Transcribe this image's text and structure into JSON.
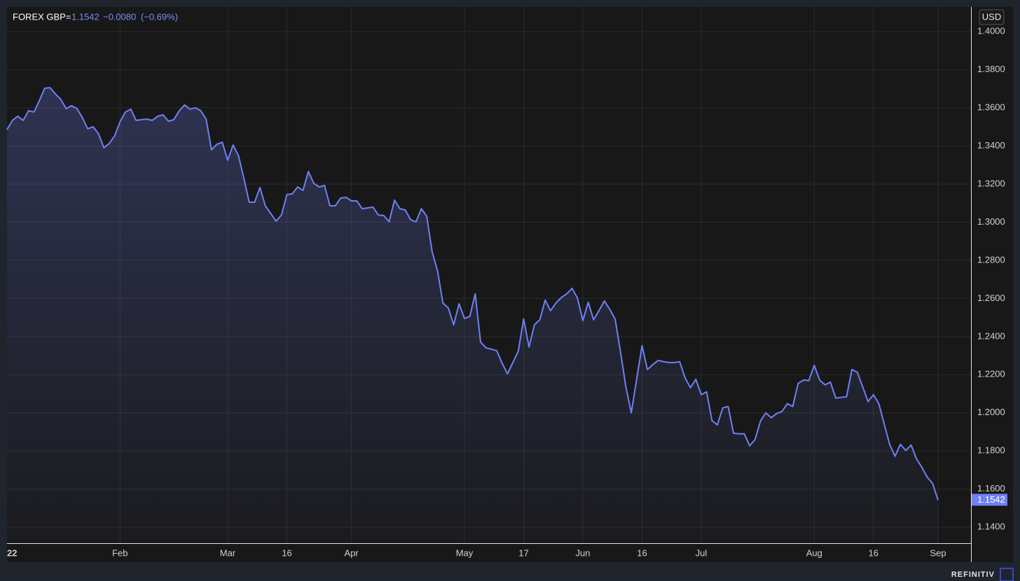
{
  "chart_data": {
    "type": "area",
    "title": "FOREX GBP=",
    "quote_change": "−0.0080",
    "quote_change_pct": "(−0.69%)",
    "currency": "USD",
    "brand": "REFINITIV",
    "grid": true,
    "categories": [
      "22",
      null,
      null,
      null,
      null,
      null,
      null,
      null,
      null,
      null,
      null,
      null,
      null,
      null,
      null,
      null,
      null,
      null,
      null,
      null,
      null,
      "Feb",
      null,
      null,
      null,
      null,
      null,
      null,
      null,
      null,
      null,
      null,
      null,
      null,
      null,
      null,
      null,
      null,
      null,
      null,
      null,
      "Mar",
      null,
      null,
      null,
      null,
      null,
      null,
      null,
      null,
      null,
      null,
      "16",
      null,
      null,
      null,
      null,
      null,
      null,
      null,
      null,
      null,
      null,
      null,
      "Apr",
      null,
      null,
      null,
      null,
      null,
      null,
      null,
      null,
      null,
      null,
      null,
      null,
      null,
      null,
      null,
      null,
      null,
      null,
      null,
      null,
      "May",
      null,
      null,
      null,
      null,
      null,
      null,
      null,
      null,
      null,
      null,
      "17",
      null,
      null,
      null,
      null,
      null,
      null,
      null,
      null,
      null,
      null,
      "Jun",
      null,
      null,
      null,
      null,
      null,
      null,
      null,
      null,
      null,
      null,
      "16",
      null,
      null,
      null,
      null,
      null,
      null,
      null,
      null,
      null,
      null,
      "Jul",
      null,
      null,
      null,
      null,
      null,
      null,
      null,
      null,
      null,
      null,
      null,
      null,
      null,
      null,
      null,
      null,
      null,
      null,
      null,
      null,
      "Aug",
      null,
      null,
      null,
      null,
      null,
      null,
      null,
      null,
      null,
      null,
      "16",
      null,
      null,
      null,
      null,
      null,
      null,
      null,
      null,
      null,
      null,
      null,
      "Sep"
    ],
    "series": [
      {
        "name": "GBP",
        "color": "#6f80f4",
        "values": [
          1.3486,
          1.3534,
          1.3556,
          1.3534,
          1.3585,
          1.3578,
          1.3637,
          1.3703,
          1.3706,
          1.3673,
          1.3644,
          1.3596,
          1.3611,
          1.3596,
          1.3549,
          1.349,
          1.3501,
          1.3464,
          1.3391,
          1.3413,
          1.3453,
          1.3527,
          1.3578,
          1.3593,
          1.3534,
          1.3538,
          1.3541,
          1.3534,
          1.3556,
          1.3563,
          1.353,
          1.3538,
          1.3585,
          1.3615,
          1.3593,
          1.36,
          1.3585,
          1.3541,
          1.338,
          1.3409,
          1.342,
          1.3325,
          1.3405,
          1.335,
          1.3233,
          1.3105,
          1.3105,
          1.3182,
          1.3086,
          1.3046,
          1.3005,
          1.3038,
          1.3145,
          1.3149,
          1.3185,
          1.3167,
          1.3266,
          1.3204,
          1.3185,
          1.3193,
          1.3086,
          1.3086,
          1.3127,
          1.313,
          1.3112,
          1.3112,
          1.3071,
          1.3075,
          1.3079,
          1.3038,
          1.3035,
          1.3002,
          1.3116,
          1.3071,
          1.3064,
          1.3013,
          1.3002,
          1.3071,
          1.3031,
          1.2844,
          1.2745,
          1.2576,
          1.255,
          1.2462,
          1.2572,
          1.2495,
          1.2506,
          1.2624,
          1.2371,
          1.2341,
          1.2334,
          1.2326,
          1.226,
          1.2205,
          1.2264,
          1.2323,
          1.2492,
          1.2345,
          1.2462,
          1.2488,
          1.2591,
          1.2536,
          1.2576,
          1.2605,
          1.2624,
          1.2653,
          1.2602,
          1.2484,
          1.258,
          1.2488,
          1.2536,
          1.2587,
          1.2543,
          1.2492,
          1.2319,
          1.2136,
          1.2,
          1.2176,
          1.2352,
          1.2227,
          1.2253,
          1.2275,
          1.2268,
          1.2264,
          1.2264,
          1.2268,
          1.2183,
          1.2132,
          1.2176,
          1.2095,
          1.211,
          1.1959,
          1.1937,
          1.2026,
          1.2033,
          1.1893,
          1.189,
          1.189,
          1.1827,
          1.186,
          1.1956,
          1.2,
          1.1974,
          1.1996,
          1.2007,
          1.2048,
          1.2033,
          1.2154,
          1.2172,
          1.2169,
          1.2249,
          1.2172,
          1.2147,
          1.2161,
          1.2077,
          1.2081,
          1.2084,
          1.2227,
          1.2213,
          1.2136,
          1.2059,
          1.2095,
          1.2048,
          1.1941,
          1.1835,
          1.1772,
          1.1835,
          1.1802,
          1.1831,
          1.1758,
          1.1714,
          1.1662,
          1.1629,
          1.1542
        ]
      }
    ],
    "ylim": [
      1.1316,
      1.4129
    ],
    "yticks": [
      {
        "value": 1.14,
        "label": "1.1400"
      },
      {
        "value": 1.16,
        "label": "1.1600"
      },
      {
        "value": 1.18,
        "label": "1.1800"
      },
      {
        "value": 1.2,
        "label": "1.2000"
      },
      {
        "value": 1.22,
        "label": "1.2200"
      },
      {
        "value": 1.24,
        "label": "1.2400"
      },
      {
        "value": 1.26,
        "label": "1.2600"
      },
      {
        "value": 1.28,
        "label": "1.2800"
      },
      {
        "value": 1.3,
        "label": "1.3000"
      },
      {
        "value": 1.32,
        "label": "1.3200"
      },
      {
        "value": 1.34,
        "label": "1.3400"
      },
      {
        "value": 1.36,
        "label": "1.3600"
      },
      {
        "value": 1.38,
        "label": "1.3800"
      },
      {
        "value": 1.4,
        "label": "1.4000"
      }
    ]
  }
}
